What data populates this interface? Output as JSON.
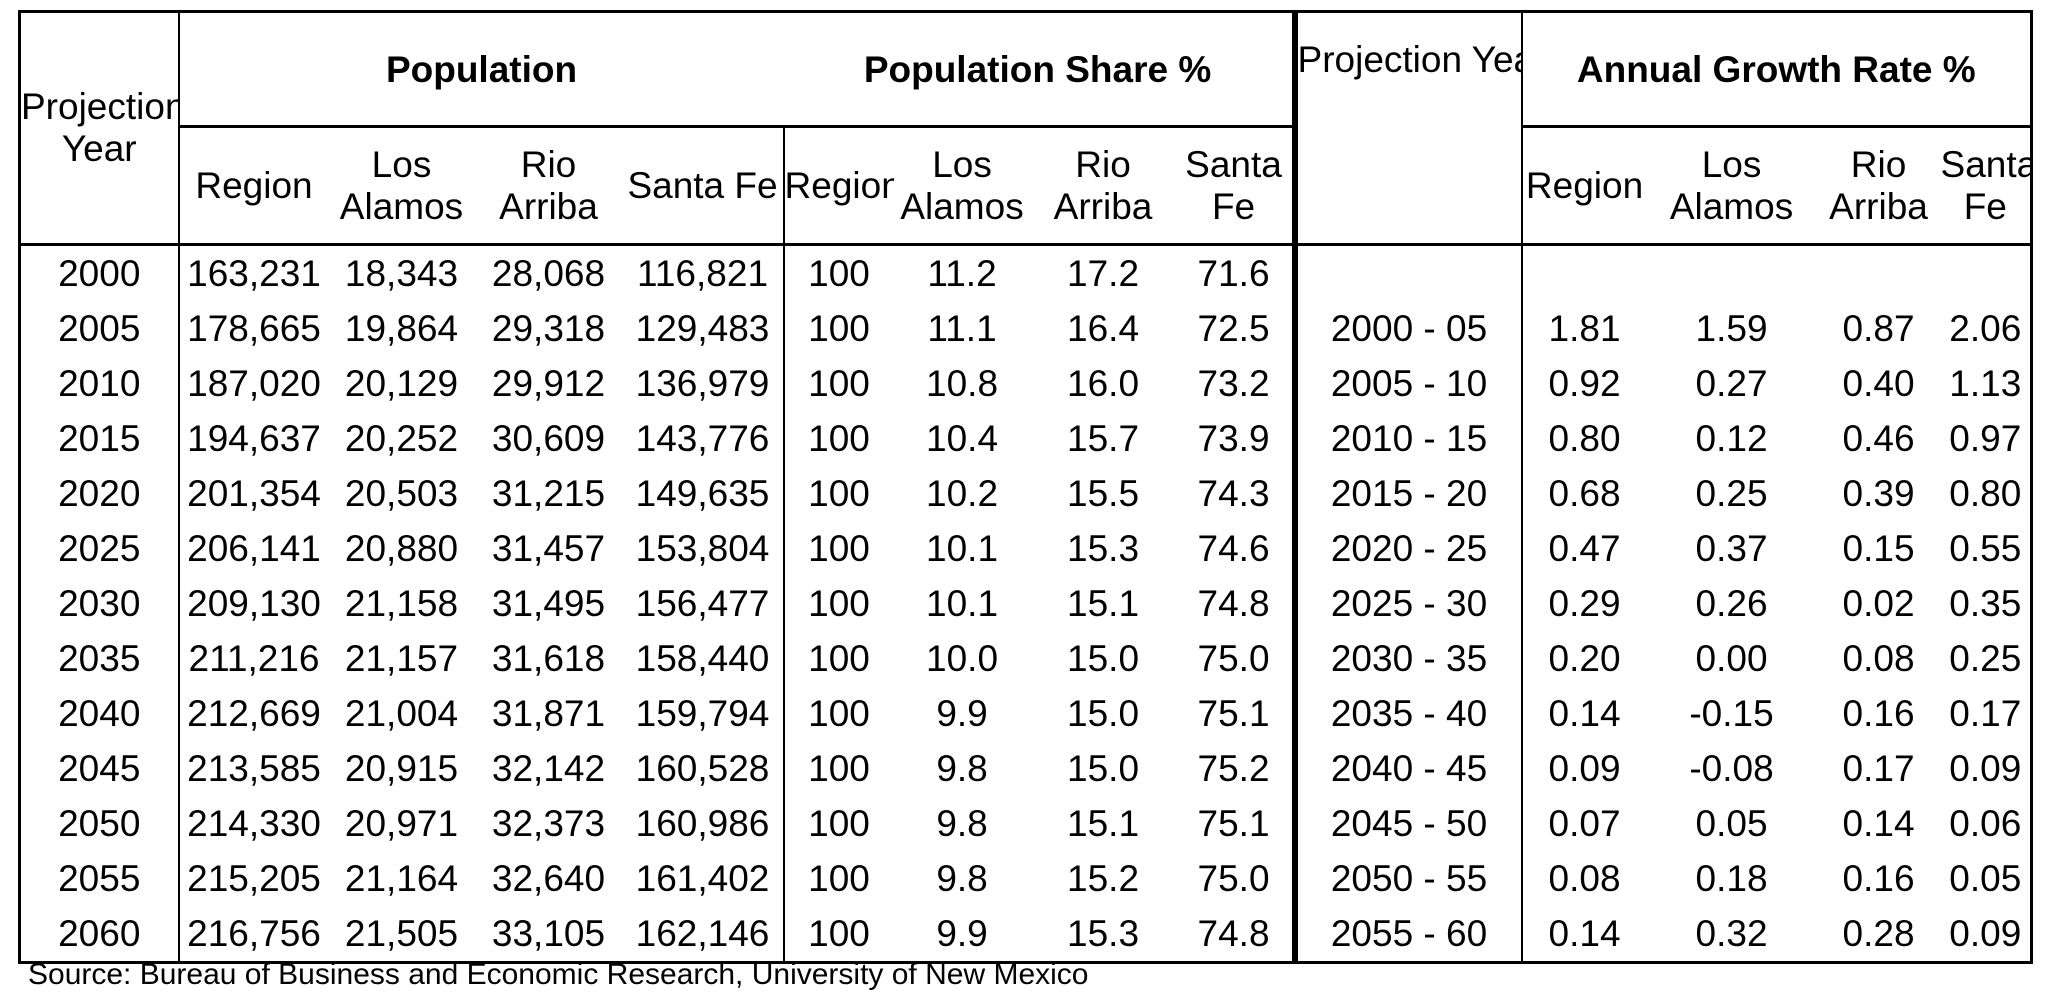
{
  "headers": {
    "projection_year_left": "Projection Year",
    "population": "Population",
    "population_share": "Population Share %",
    "projection_year_right": "Projection Year",
    "annual_growth": "Annual Growth Rate %",
    "sub": {
      "region": "Region",
      "los_alamos": "Los Alamos",
      "rio_arriba": "Rio Arriba",
      "santa_fe": "Santa Fe"
    }
  },
  "rows": [
    {
      "year": "2000",
      "pop": [
        "163,231",
        "18,343",
        "28,068",
        "116,821"
      ],
      "share": [
        "100",
        "11.2",
        "17.2",
        "71.6"
      ],
      "period": "",
      "growth": [
        "",
        "",
        "",
        ""
      ]
    },
    {
      "year": "2005",
      "pop": [
        "178,665",
        "19,864",
        "29,318",
        "129,483"
      ],
      "share": [
        "100",
        "11.1",
        "16.4",
        "72.5"
      ],
      "period": "2000 - 05",
      "growth": [
        "1.81",
        "1.59",
        "0.87",
        "2.06"
      ]
    },
    {
      "year": "2010",
      "pop": [
        "187,020",
        "20,129",
        "29,912",
        "136,979"
      ],
      "share": [
        "100",
        "10.8",
        "16.0",
        "73.2"
      ],
      "period": "2005 - 10",
      "growth": [
        "0.92",
        "0.27",
        "0.40",
        "1.13"
      ]
    },
    {
      "year": "2015",
      "pop": [
        "194,637",
        "20,252",
        "30,609",
        "143,776"
      ],
      "share": [
        "100",
        "10.4",
        "15.7",
        "73.9"
      ],
      "period": "2010 - 15",
      "growth": [
        "0.80",
        "0.12",
        "0.46",
        "0.97"
      ]
    },
    {
      "year": "2020",
      "pop": [
        "201,354",
        "20,503",
        "31,215",
        "149,635"
      ],
      "share": [
        "100",
        "10.2",
        "15.5",
        "74.3"
      ],
      "period": "2015 - 20",
      "growth": [
        "0.68",
        "0.25",
        "0.39",
        "0.80"
      ]
    },
    {
      "year": "2025",
      "pop": [
        "206,141",
        "20,880",
        "31,457",
        "153,804"
      ],
      "share": [
        "100",
        "10.1",
        "15.3",
        "74.6"
      ],
      "period": "2020 - 25",
      "growth": [
        "0.47",
        "0.37",
        "0.15",
        "0.55"
      ]
    },
    {
      "year": "2030",
      "pop": [
        "209,130",
        "21,158",
        "31,495",
        "156,477"
      ],
      "share": [
        "100",
        "10.1",
        "15.1",
        "74.8"
      ],
      "period": "2025 - 30",
      "growth": [
        "0.29",
        "0.26",
        "0.02",
        "0.35"
      ]
    },
    {
      "year": "2035",
      "pop": [
        "211,216",
        "21,157",
        "31,618",
        "158,440"
      ],
      "share": [
        "100",
        "10.0",
        "15.0",
        "75.0"
      ],
      "period": "2030 - 35",
      "growth": [
        "0.20",
        "0.00",
        "0.08",
        "0.25"
      ]
    },
    {
      "year": "2040",
      "pop": [
        "212,669",
        "21,004",
        "31,871",
        "159,794"
      ],
      "share": [
        "100",
        "9.9",
        "15.0",
        "75.1"
      ],
      "period": "2035 - 40",
      "growth": [
        "0.14",
        "-0.15",
        "0.16",
        "0.17"
      ]
    },
    {
      "year": "2045",
      "pop": [
        "213,585",
        "20,915",
        "32,142",
        "160,528"
      ],
      "share": [
        "100",
        "9.8",
        "15.0",
        "75.2"
      ],
      "period": "2040 - 45",
      "growth": [
        "0.09",
        "-0.08",
        "0.17",
        "0.09"
      ]
    },
    {
      "year": "2050",
      "pop": [
        "214,330",
        "20,971",
        "32,373",
        "160,986"
      ],
      "share": [
        "100",
        "9.8",
        "15.1",
        "75.1"
      ],
      "period": "2045 - 50",
      "growth": [
        "0.07",
        "0.05",
        "0.14",
        "0.06"
      ]
    },
    {
      "year": "2055",
      "pop": [
        "215,205",
        "21,164",
        "32,640",
        "161,402"
      ],
      "share": [
        "100",
        "9.8",
        "15.2",
        "75.0"
      ],
      "period": "2050 - 55",
      "growth": [
        "0.08",
        "0.18",
        "0.16",
        "0.05"
      ]
    },
    {
      "year": "2060",
      "pop": [
        "216,756",
        "21,505",
        "33,105",
        "162,146"
      ],
      "share": [
        "100",
        "9.9",
        "15.3",
        "74.8"
      ],
      "period": "2055 - 60",
      "growth": [
        "0.14",
        "0.32",
        "0.28",
        "0.09"
      ]
    }
  ],
  "footnote": "Source: Bureau of Business and Economic Research, University of New Mexico"
}
